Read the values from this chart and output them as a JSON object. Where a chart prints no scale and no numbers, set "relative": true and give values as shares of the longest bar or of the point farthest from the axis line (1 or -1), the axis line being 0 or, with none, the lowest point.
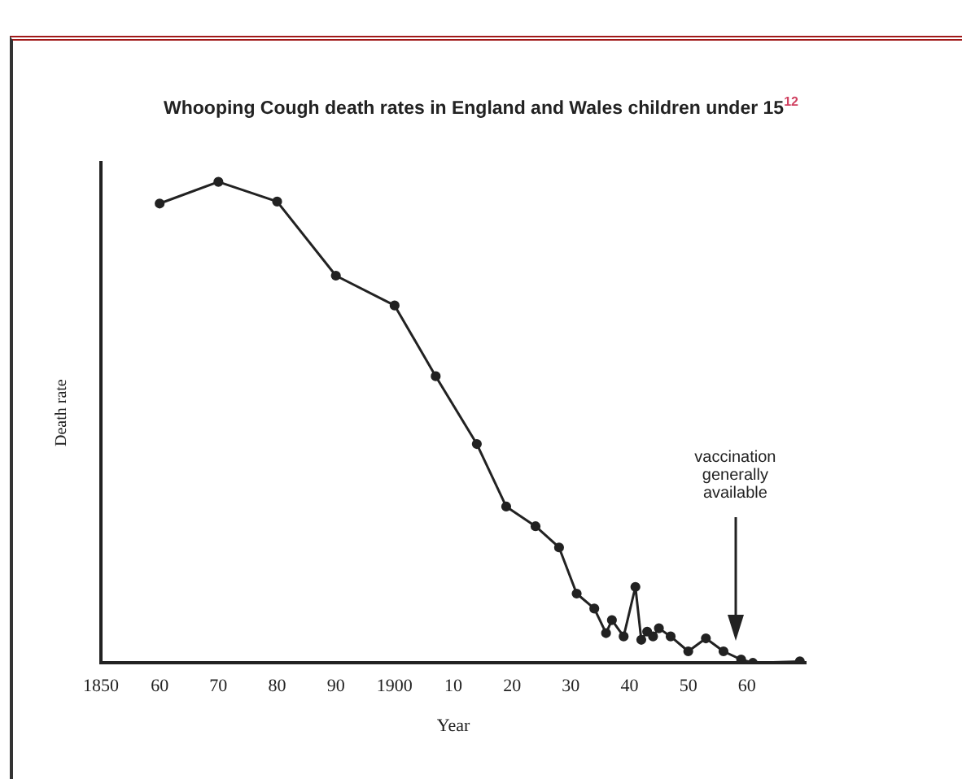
{
  "chart_data": {
    "type": "line",
    "title": "Whooping Cough death rates in England and Wales children under 15$^{12}$",
    "xlabel": "Year",
    "ylabel": "Death rate",
    "relative": true,
    "marker": "circle",
    "grid": false,
    "legend": false,
    "xlim": [
      1850,
      1970
    ],
    "xticks": [
      {
        "value": 1850,
        "label": "1850"
      },
      {
        "value": 1860,
        "label": "60"
      },
      {
        "value": 1870,
        "label": "70"
      },
      {
        "value": 1880,
        "label": "80"
      },
      {
        "value": 1890,
        "label": "90"
      },
      {
        "value": 1900,
        "label": "1900"
      },
      {
        "value": 1910,
        "label": "10"
      },
      {
        "value": 1920,
        "label": "20"
      },
      {
        "value": 1930,
        "label": "30"
      },
      {
        "value": 1940,
        "label": "40"
      },
      {
        "value": 1950,
        "label": "50"
      },
      {
        "value": 1960,
        "label": "60"
      }
    ],
    "x": [
      1860,
      1870,
      1880,
      1890,
      1900,
      1907,
      1914,
      1919,
      1924,
      1928,
      1931,
      1934,
      1936,
      1937,
      1939,
      1941,
      1942,
      1943,
      1944,
      1945,
      1947,
      1950,
      1953,
      1956,
      1959,
      1961,
      1969
    ],
    "series": [
      {
        "color": "#222222",
        "values": [
          0.955,
          1,
          0.959,
          0.805,
          0.743,
          0.596,
          0.455,
          0.325,
          0.284,
          0.24,
          0.144,
          0.113,
          0.062,
          0.089,
          0.055,
          0.158,
          0.048,
          0.065,
          0.055,
          0.072,
          0.055,
          0.024,
          0.051,
          0.024,
          0.007,
          0,
          0.003
        ]
      }
    ],
    "annotations": [
      "vaccination generally available"
    ]
  }
}
